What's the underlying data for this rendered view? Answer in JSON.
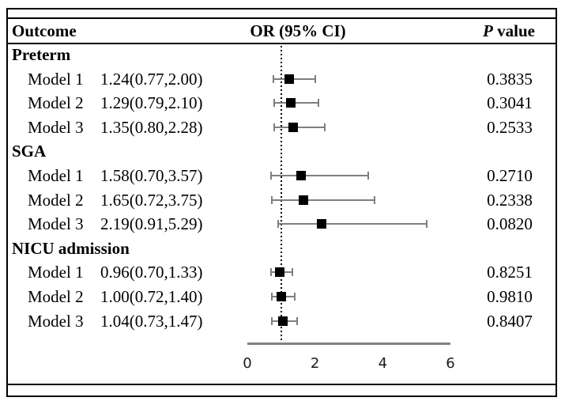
{
  "header": {
    "outcome": "Outcome",
    "or_ci": "OR (95% CI)",
    "p_label_italic": "P",
    "p_label_rest": " value"
  },
  "chart_data": {
    "type": "forest",
    "x_range": [
      0,
      6
    ],
    "x_ticks": [
      0,
      2,
      4,
      6
    ],
    "reference_line": 1,
    "grid": false,
    "groups": [
      {
        "label": "Preterm",
        "models": [
          {
            "label": "Model 1",
            "ci_text": "1.24(0.77,2.00)",
            "or": 1.24,
            "ci_low": 0.77,
            "ci_high": 2.0,
            "p_value": "0.3835"
          },
          {
            "label": "Model 2",
            "ci_text": "1.29(0.79,2.10)",
            "or": 1.29,
            "ci_low": 0.79,
            "ci_high": 2.1,
            "p_value": "0.3041"
          },
          {
            "label": "Model 3",
            "ci_text": "1.35(0.80,2.28)",
            "or": 1.35,
            "ci_low": 0.8,
            "ci_high": 2.28,
            "p_value": "0.2533"
          }
        ]
      },
      {
        "label": "SGA",
        "models": [
          {
            "label": "Model 1",
            "ci_text": "1.58(0.70,3.57)",
            "or": 1.58,
            "ci_low": 0.7,
            "ci_high": 3.57,
            "p_value": "0.2710"
          },
          {
            "label": "Model 2",
            "ci_text": "1.65(0.72,3.75)",
            "or": 1.65,
            "ci_low": 0.72,
            "ci_high": 3.75,
            "p_value": "0.2338"
          },
          {
            "label": "Model 3",
            "ci_text": "2.19(0.91,5.29)",
            "or": 2.19,
            "ci_low": 0.91,
            "ci_high": 5.29,
            "p_value": "0.0820"
          }
        ]
      },
      {
        "label": "NICU admission",
        "models": [
          {
            "label": "Model 1",
            "ci_text": "0.96(0.70,1.33)",
            "or": 0.96,
            "ci_low": 0.7,
            "ci_high": 1.33,
            "p_value": "0.8251"
          },
          {
            "label": "Model 2",
            "ci_text": "1.00(0.72,1.40)",
            "or": 1.0,
            "ci_low": 0.72,
            "ci_high": 1.4,
            "p_value": "0.9810"
          },
          {
            "label": "Model 3",
            "ci_text": "1.04(0.73,1.47)",
            "or": 1.04,
            "ci_low": 0.73,
            "ci_high": 1.47,
            "p_value": "0.8407"
          }
        ]
      }
    ],
    "colors": {
      "marker": "#000000",
      "error_bar": "#7f7f7f",
      "axis_line": "#808080",
      "reference_line": "#000000",
      "tick_label": "#1a1a1a",
      "text": "#000000",
      "background": "#ffffff"
    }
  }
}
